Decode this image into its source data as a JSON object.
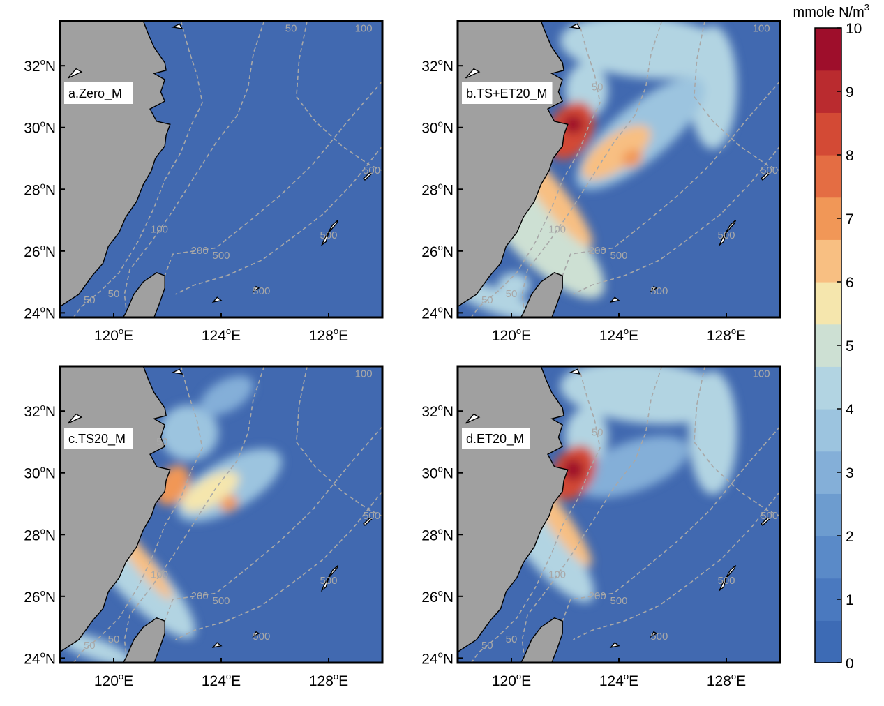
{
  "colorbar": {
    "unit_main": "mmole N/m",
    "unit_sup": "3",
    "ticks": [
      "0",
      "1",
      "2",
      "3",
      "4",
      "5",
      "6",
      "7",
      "8",
      "9",
      "10"
    ],
    "min": 0,
    "max": 10,
    "colors": [
      "#3d6bb5",
      "#4a79bf",
      "#5a8ac8",
      "#6d9ccf",
      "#84afd8",
      "#9cc4df",
      "#b2d4e2",
      "#cde0d3",
      "#f5e6ad",
      "#f8bf82",
      "#f19757",
      "#e46d43",
      "#d34a35",
      "#ba2b2f",
      "#9e0e2b"
    ]
  },
  "x_ticks": [
    {
      "value": 120,
      "deg": "120",
      "suffix": "E"
    },
    {
      "value": 124,
      "deg": "124",
      "suffix": "E"
    },
    {
      "value": 128,
      "deg": "128",
      "suffix": "E"
    }
  ],
  "y_ticks": [
    {
      "value": 24,
      "deg": "24",
      "suffix": "N"
    },
    {
      "value": 26,
      "deg": "26",
      "suffix": "N"
    },
    {
      "value": 28,
      "deg": "28",
      "suffix": "N"
    },
    {
      "value": 30,
      "deg": "30",
      "suffix": "N"
    },
    {
      "value": 32,
      "deg": "32",
      "suffix": "N"
    }
  ],
  "degree_symbol": "o",
  "lon_range": [
    118.0,
    130.0
  ],
  "lat_range": [
    23.85,
    33.45
  ],
  "colors": {
    "ocean": "#4169b0",
    "land": "#a0a0a0",
    "contour": "#a8a8a8",
    "coast": "#000000"
  },
  "panels": [
    {
      "label": "a.Zero_M",
      "contour_labels": [
        {
          "text": "50",
          "lon": 120.4,
          "lat": 31.25
        },
        {
          "text": "50",
          "lon": 126.6,
          "lat": 33.1
        },
        {
          "text": "100",
          "lon": 121.7,
          "lat": 26.6
        },
        {
          "text": "200",
          "lon": 123.2,
          "lat": 25.9
        },
        {
          "text": "500",
          "lon": 124.0,
          "lat": 25.75
        },
        {
          "text": "50",
          "lon": 119.1,
          "lat": 24.3
        },
        {
          "text": "50",
          "lon": 120.0,
          "lat": 24.5
        },
        {
          "text": "500",
          "lon": 125.5,
          "lat": 24.6
        },
        {
          "text": "500",
          "lon": 128.0,
          "lat": 26.4
        },
        {
          "text": "500",
          "lon": 129.6,
          "lat": 28.5
        },
        {
          "text": "100",
          "lon": 129.3,
          "lat": 33.1
        }
      ],
      "plumes": []
    },
    {
      "label": "b.TS+ET20_M",
      "contour_labels": [
        {
          "text": "50",
          "lon": 123.2,
          "lat": 31.2
        },
        {
          "text": "100",
          "lon": 121.7,
          "lat": 26.6
        },
        {
          "text": "200",
          "lon": 123.2,
          "lat": 25.9
        },
        {
          "text": "500",
          "lon": 124.0,
          "lat": 25.75
        },
        {
          "text": "50",
          "lon": 119.1,
          "lat": 24.3
        },
        {
          "text": "50",
          "lon": 120.0,
          "lat": 24.5
        },
        {
          "text": "500",
          "lon": 125.5,
          "lat": 24.6
        },
        {
          "text": "500",
          "lon": 128.0,
          "lat": 26.4
        },
        {
          "text": "500",
          "lon": 129.6,
          "lat": 28.5
        },
        {
          "text": "100",
          "lon": 129.3,
          "lat": 33.1
        }
      ],
      "plumes": [
        {
          "lon": 125.0,
          "lat": 32.6,
          "rx": 3.2,
          "ry": 1.0,
          "rot": -5,
          "value": 4.3
        },
        {
          "lon": 127.5,
          "lat": 31.3,
          "rx": 0.9,
          "ry": 2.0,
          "rot": 0,
          "value": 4.6
        },
        {
          "lon": 124.8,
          "lat": 29.8,
          "rx": 3.0,
          "ry": 0.9,
          "rot": 40,
          "value": 3.6
        },
        {
          "lon": 122.8,
          "lat": 31.2,
          "rx": 0.8,
          "ry": 0.9,
          "rot": 0,
          "value": 4.2
        },
        {
          "lon": 121.0,
          "lat": 26.6,
          "rx": 3.3,
          "ry": 0.95,
          "rot": -45,
          "value": 4.8
        },
        {
          "lon": 119.4,
          "lat": 24.4,
          "rx": 1.7,
          "ry": 0.4,
          "rot": -20,
          "value": 4.0
        },
        {
          "lon": 120.1,
          "lat": 24.9,
          "rx": 0.6,
          "ry": 0.4,
          "rot": 0,
          "value": 4.2
        },
        {
          "lon": 123.9,
          "lat": 29.2,
          "rx": 1.5,
          "ry": 0.55,
          "rot": 35,
          "value": 6.2
        },
        {
          "lon": 121.5,
          "lat": 27.8,
          "rx": 2.4,
          "ry": 0.42,
          "rot": -52,
          "value": 6.6
        },
        {
          "lon": 122.2,
          "lat": 29.9,
          "rx": 0.8,
          "ry": 1.0,
          "rot": -30,
          "value": 8.0
        },
        {
          "lon": 124.5,
          "lat": 29.0,
          "rx": 0.4,
          "ry": 0.28,
          "rot": 30,
          "value": 7.0
        },
        {
          "lon": 122.3,
          "lat": 30.1,
          "rx": 0.4,
          "ry": 0.3,
          "rot": 0,
          "value": 9.6
        }
      ]
    },
    {
      "label": "c.TS20_M",
      "contour_labels": [
        {
          "text": "50",
          "lon": 121.8,
          "lat": 30.9
        },
        {
          "text": "100",
          "lon": 121.7,
          "lat": 26.6
        },
        {
          "text": "200",
          "lon": 123.2,
          "lat": 25.9
        },
        {
          "text": "500",
          "lon": 124.0,
          "lat": 25.75
        },
        {
          "text": "50",
          "lon": 119.1,
          "lat": 24.3
        },
        {
          "text": "50",
          "lon": 120.0,
          "lat": 24.5
        },
        {
          "text": "500",
          "lon": 125.5,
          "lat": 24.6
        },
        {
          "text": "500",
          "lon": 128.0,
          "lat": 26.4
        },
        {
          "text": "500",
          "lon": 129.6,
          "lat": 28.5
        },
        {
          "text": "100",
          "lon": 129.3,
          "lat": 33.1
        }
      ],
      "plumes": [
        {
          "lon": 122.8,
          "lat": 31.3,
          "rx": 1.1,
          "ry": 0.9,
          "rot": 0,
          "value": 3.8
        },
        {
          "lon": 124.2,
          "lat": 32.5,
          "rx": 1.1,
          "ry": 0.5,
          "rot": 30,
          "value": 3.2
        },
        {
          "lon": 124.3,
          "lat": 29.6,
          "rx": 2.2,
          "ry": 0.8,
          "rot": 30,
          "value": 3.6
        },
        {
          "lon": 120.7,
          "lat": 26.8,
          "rx": 3.3,
          "ry": 0.75,
          "rot": -47,
          "value": 4.6
        },
        {
          "lon": 119.3,
          "lat": 24.3,
          "rx": 1.5,
          "ry": 0.35,
          "rot": -20,
          "value": 4.0
        },
        {
          "lon": 123.6,
          "lat": 29.4,
          "rx": 1.2,
          "ry": 0.45,
          "rot": 30,
          "value": 5.8
        },
        {
          "lon": 121.0,
          "lat": 27.2,
          "rx": 1.9,
          "ry": 0.28,
          "rot": -52,
          "value": 6.2
        },
        {
          "lon": 122.2,
          "lat": 29.6,
          "rx": 0.55,
          "ry": 0.7,
          "rot": -30,
          "value": 7.0
        },
        {
          "lon": 124.3,
          "lat": 29.0,
          "rx": 0.35,
          "ry": 0.25,
          "rot": 30,
          "value": 6.8
        }
      ]
    },
    {
      "label": "d.ET20_M",
      "contour_labels": [
        {
          "text": "50",
          "lon": 123.2,
          "lat": 31.2
        },
        {
          "text": "100",
          "lon": 121.7,
          "lat": 26.6
        },
        {
          "text": "200",
          "lon": 123.2,
          "lat": 25.9
        },
        {
          "text": "500",
          "lon": 124.0,
          "lat": 25.75
        },
        {
          "text": "50",
          "lon": 119.1,
          "lat": 24.3
        },
        {
          "text": "50",
          "lon": 120.0,
          "lat": 24.5
        },
        {
          "text": "500",
          "lon": 125.5,
          "lat": 24.6
        },
        {
          "text": "500",
          "lon": 128.0,
          "lat": 26.4
        },
        {
          "text": "500",
          "lon": 129.6,
          "lat": 28.5
        },
        {
          "text": "100",
          "lon": 129.3,
          "lat": 33.1
        }
      ],
      "plumes": [
        {
          "lon": 125.0,
          "lat": 32.6,
          "rx": 3.2,
          "ry": 1.0,
          "rot": -5,
          "value": 4.2
        },
        {
          "lon": 127.5,
          "lat": 31.3,
          "rx": 0.9,
          "ry": 2.0,
          "rot": 0,
          "value": 4.5
        },
        {
          "lon": 124.5,
          "lat": 30.2,
          "rx": 2.2,
          "ry": 0.8,
          "rot": 20,
          "value": 3.2
        },
        {
          "lon": 122.8,
          "lat": 31.2,
          "rx": 0.8,
          "ry": 0.9,
          "rot": 0,
          "value": 4.0
        },
        {
          "lon": 121.3,
          "lat": 27.6,
          "rx": 2.6,
          "ry": 0.7,
          "rot": -50,
          "value": 4.6
        },
        {
          "lon": 121.8,
          "lat": 28.4,
          "rx": 2.0,
          "ry": 0.35,
          "rot": -55,
          "value": 6.6
        },
        {
          "lon": 122.3,
          "lat": 30.0,
          "rx": 0.75,
          "ry": 0.95,
          "rot": -30,
          "value": 8.2
        },
        {
          "lon": 122.3,
          "lat": 30.1,
          "rx": 0.4,
          "ry": 0.35,
          "rot": 0,
          "value": 9.7
        }
      ]
    }
  ]
}
